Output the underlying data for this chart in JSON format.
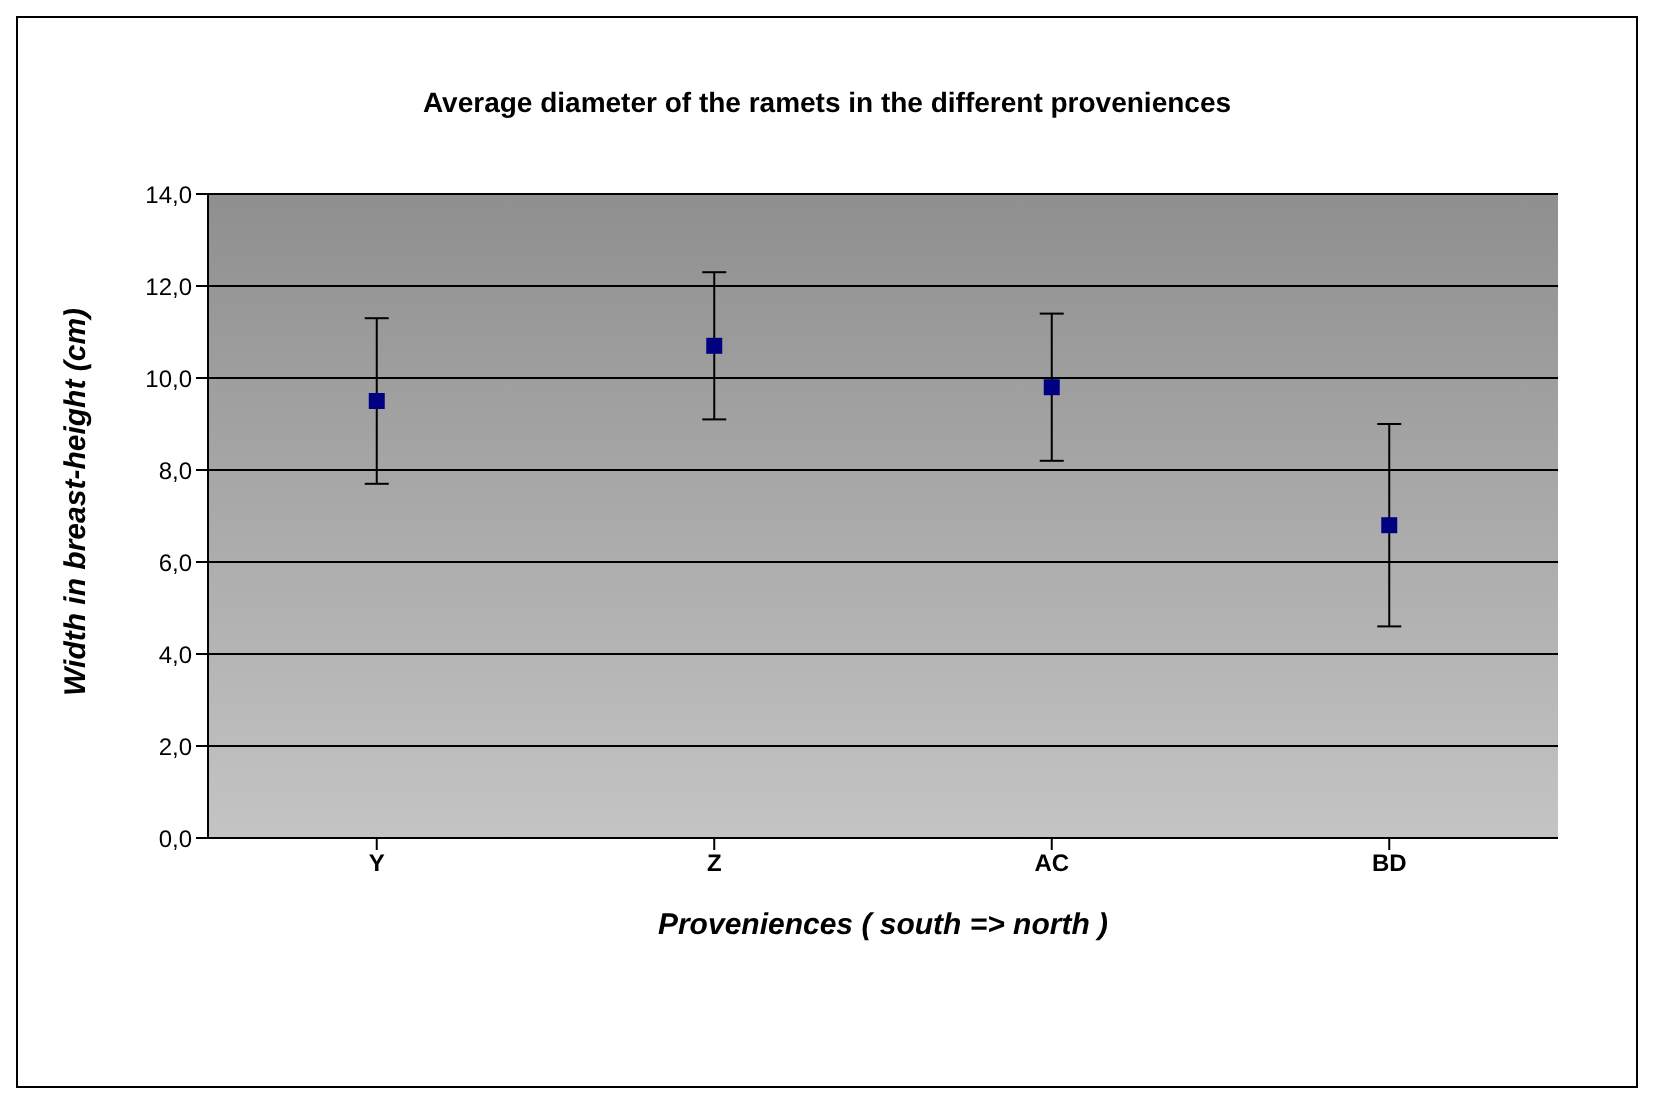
{
  "chart_data": {
    "type": "scatter",
    "title": "Average diameter of the ramets in the different proveniences",
    "xlabel": "Proveniences ( south => north )",
    "ylabel": "Width in breast-height (cm)",
    "categories": [
      "Y",
      "Z",
      "AC",
      "BD"
    ],
    "series": [
      {
        "color": "#000080",
        "values": [
          9.5,
          10.7,
          9.8,
          6.8
        ],
        "errors": [
          1.8,
          1.6,
          1.6,
          2.2
        ]
      }
    ],
    "ylim": [
      0,
      14
    ],
    "yticks": [
      {
        "value": 0,
        "label": "0,0"
      },
      {
        "value": 2,
        "label": "2,0"
      },
      {
        "value": 4,
        "label": "4,0"
      },
      {
        "value": 6,
        "label": "6,0"
      },
      {
        "value": 8,
        "label": "8,0"
      },
      {
        "value": 10,
        "label": "10,0"
      },
      {
        "value": 12,
        "label": "12,0"
      },
      {
        "value": 14,
        "label": "14,0"
      }
    ],
    "grid": "y",
    "marker": "square"
  }
}
